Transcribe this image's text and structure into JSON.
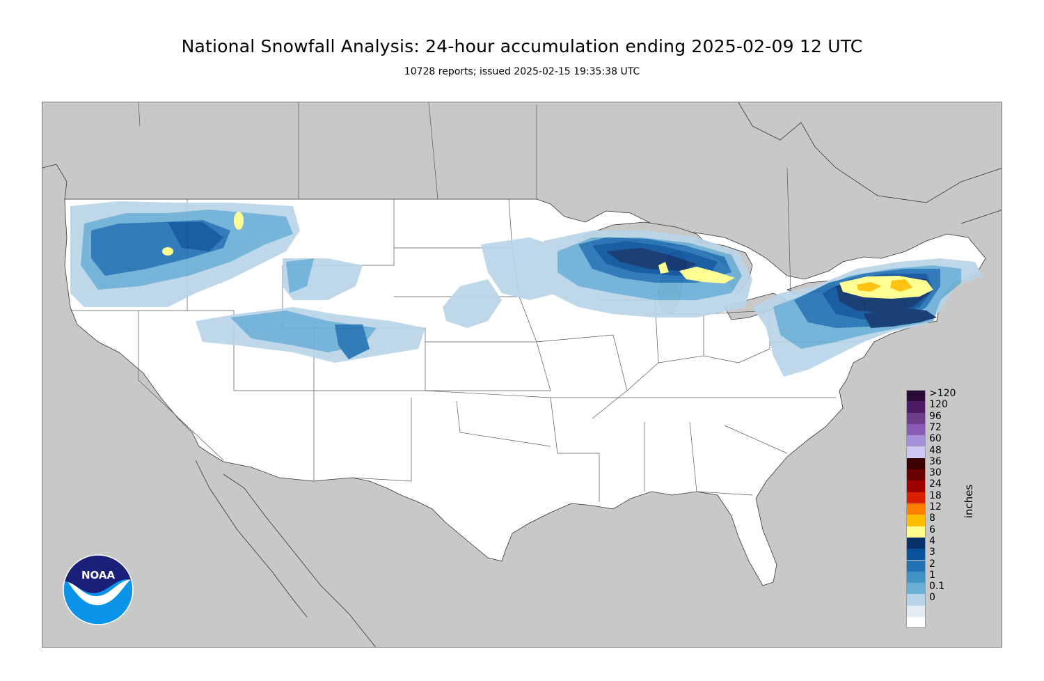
{
  "header": {
    "title": "National Snowfall Analysis: 24-hour accumulation ending 2025-02-09 12 UTC",
    "subtitle": "10728 reports; issued 2025-02-15 19:35:38 UTC"
  },
  "map": {
    "background_color": "#c8c8c8",
    "land_color": "#ffffff",
    "border_color": "#444444"
  },
  "legend": {
    "unit_label": "inches",
    "entries": [
      {
        "label": ">120",
        "color": "#2a0a36"
      },
      {
        "label": "120",
        "color": "#4e1a63"
      },
      {
        "label": "96",
        "color": "#6e3d8c"
      },
      {
        "label": "72",
        "color": "#8a5cb5"
      },
      {
        "label": "60",
        "color": "#a88fd9"
      },
      {
        "label": "48",
        "color": "#cfc7f5"
      },
      {
        "label": "36",
        "color": "#3b0000"
      },
      {
        "label": "30",
        "color": "#6b0000"
      },
      {
        "label": "24",
        "color": "#9e0000"
      },
      {
        "label": "18",
        "color": "#d92000"
      },
      {
        "label": "12",
        "color": "#ff8000"
      },
      {
        "label": "8",
        "color": "#ffbf00"
      },
      {
        "label": "6",
        "color": "#ffff8c"
      },
      {
        "label": "4",
        "color": "#08306b"
      },
      {
        "label": "3",
        "color": "#08519c"
      },
      {
        "label": "2",
        "color": "#2171b5"
      },
      {
        "label": "1",
        "color": "#4292c6"
      },
      {
        "label": "0.1",
        "color": "#6baed6"
      },
      {
        "label": "0",
        "color": "#b9d4e8"
      },
      {
        "label": "",
        "color": "#e2ecf5"
      },
      {
        "label": "",
        "color": "#ffffff"
      }
    ]
  },
  "logo": {
    "text": "NOAA",
    "colors": {
      "top": "#1a1f7a",
      "bottom": "#0a93e8"
    }
  }
}
